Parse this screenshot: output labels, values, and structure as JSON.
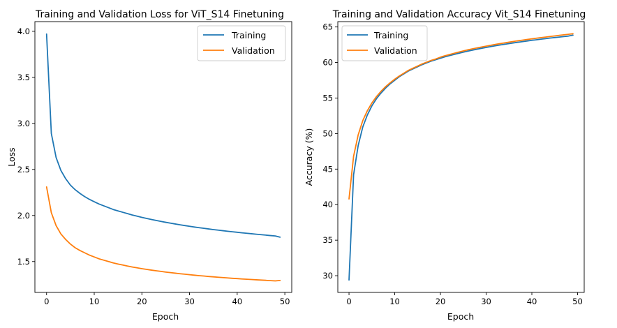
{
  "chart_data": [
    {
      "type": "line",
      "title": "Training and Validation Loss for ViT_S14 Finetuning",
      "xlabel": "Epoch",
      "ylabel": "Loss",
      "xlim": [
        -2.45,
        51.45
      ],
      "ylim": [
        1.165,
        4.105
      ],
      "xticks": [
        0,
        10,
        20,
        30,
        40,
        50
      ],
      "xtick_labels": [
        "0",
        "10",
        "20",
        "30",
        "40",
        "50"
      ],
      "yticks": [
        1.5,
        2.0,
        2.5,
        3.0,
        3.5,
        4.0
      ],
      "ytick_labels": [
        "1.5",
        "2.0",
        "2.5",
        "3.0",
        "3.5",
        "4.0"
      ],
      "grid": false,
      "legend_position": "top-right",
      "x": [
        0,
        1,
        2,
        3,
        4,
        5,
        6,
        7,
        8,
        9,
        10,
        11,
        12,
        13,
        14,
        15,
        16,
        17,
        18,
        19,
        20,
        21,
        22,
        23,
        24,
        25,
        26,
        27,
        28,
        29,
        30,
        31,
        32,
        33,
        34,
        35,
        36,
        37,
        38,
        39,
        40,
        41,
        42,
        43,
        44,
        45,
        46,
        47,
        48,
        49
      ],
      "series": [
        {
          "name": "Training",
          "color": "#1f77b4",
          "values": [
            3.97,
            2.89,
            2.63,
            2.49,
            2.4,
            2.33,
            2.28,
            2.24,
            2.205,
            2.175,
            2.15,
            2.125,
            2.105,
            2.085,
            2.065,
            2.05,
            2.035,
            2.02,
            2.005,
            1.993,
            1.98,
            1.968,
            1.957,
            1.946,
            1.936,
            1.926,
            1.917,
            1.908,
            1.899,
            1.891,
            1.883,
            1.875,
            1.868,
            1.861,
            1.854,
            1.847,
            1.841,
            1.835,
            1.829,
            1.823,
            1.818,
            1.812,
            1.807,
            1.802,
            1.797,
            1.792,
            1.787,
            1.782,
            1.778,
            1.765
          ]
        },
        {
          "name": "Validation",
          "color": "#ff7f0e",
          "values": [
            2.31,
            2.03,
            1.89,
            1.8,
            1.74,
            1.69,
            1.65,
            1.62,
            1.595,
            1.57,
            1.55,
            1.53,
            1.515,
            1.5,
            1.485,
            1.473,
            1.462,
            1.451,
            1.441,
            1.432,
            1.423,
            1.415,
            1.407,
            1.4,
            1.393,
            1.386,
            1.38,
            1.374,
            1.368,
            1.363,
            1.357,
            1.352,
            1.347,
            1.343,
            1.338,
            1.334,
            1.33,
            1.326,
            1.322,
            1.318,
            1.315,
            1.311,
            1.308,
            1.305,
            1.302,
            1.299,
            1.296,
            1.293,
            1.29,
            1.295
          ]
        }
      ]
    },
    {
      "type": "line",
      "title": "Training and Validation Accuracy Vit_S14 Finetuning",
      "xlabel": "Epoch",
      "ylabel": "Accuracy (%)",
      "xlim": [
        -2.45,
        51.45
      ],
      "ylim": [
        27.65,
        65.75
      ],
      "xticks": [
        0,
        10,
        20,
        30,
        40,
        50
      ],
      "xtick_labels": [
        "0",
        "10",
        "20",
        "30",
        "40",
        "50"
      ],
      "yticks": [
        30,
        35,
        40,
        45,
        50,
        55,
        60,
        65
      ],
      "ytick_labels": [
        "30",
        "35",
        "40",
        "45",
        "50",
        "55",
        "60",
        "65"
      ],
      "grid": false,
      "legend_position": "top-left",
      "x": [
        0,
        1,
        2,
        3,
        4,
        5,
        6,
        7,
        8,
        9,
        10,
        11,
        12,
        13,
        14,
        15,
        16,
        17,
        18,
        19,
        20,
        21,
        22,
        23,
        24,
        25,
        26,
        27,
        28,
        29,
        30,
        31,
        32,
        33,
        34,
        35,
        36,
        37,
        38,
        39,
        40,
        41,
        42,
        43,
        44,
        45,
        46,
        47,
        48,
        49
      ],
      "series": [
        {
          "name": "Training",
          "color": "#1f77b4",
          "values": [
            29.4,
            44.2,
            48.3,
            50.9,
            52.6,
            53.9,
            54.9,
            55.7,
            56.4,
            57.0,
            57.5,
            58.0,
            58.4,
            58.8,
            59.1,
            59.4,
            59.7,
            59.95,
            60.2,
            60.4,
            60.6,
            60.8,
            60.97,
            61.13,
            61.3,
            61.45,
            61.6,
            61.74,
            61.87,
            62.0,
            62.12,
            62.24,
            62.35,
            62.46,
            62.56,
            62.66,
            62.76,
            62.85,
            62.94,
            63.03,
            63.12,
            63.2,
            63.28,
            63.36,
            63.44,
            63.51,
            63.58,
            63.65,
            63.72,
            63.85
          ]
        },
        {
          "name": "Validation",
          "color": "#ff7f0e",
          "values": [
            40.8,
            46.8,
            49.8,
            51.8,
            53.2,
            54.3,
            55.2,
            55.95,
            56.6,
            57.15,
            57.65,
            58.1,
            58.5,
            58.9,
            59.2,
            59.5,
            59.8,
            60.05,
            60.3,
            60.5,
            60.75,
            60.95,
            61.12,
            61.3,
            61.47,
            61.62,
            61.78,
            61.92,
            62.05,
            62.18,
            62.3,
            62.42,
            62.54,
            62.65,
            62.76,
            62.86,
            62.96,
            63.06,
            63.15,
            63.24,
            63.33,
            63.42,
            63.5,
            63.58,
            63.66,
            63.74,
            63.82,
            63.9,
            63.97,
            64.05
          ]
        }
      ]
    }
  ]
}
